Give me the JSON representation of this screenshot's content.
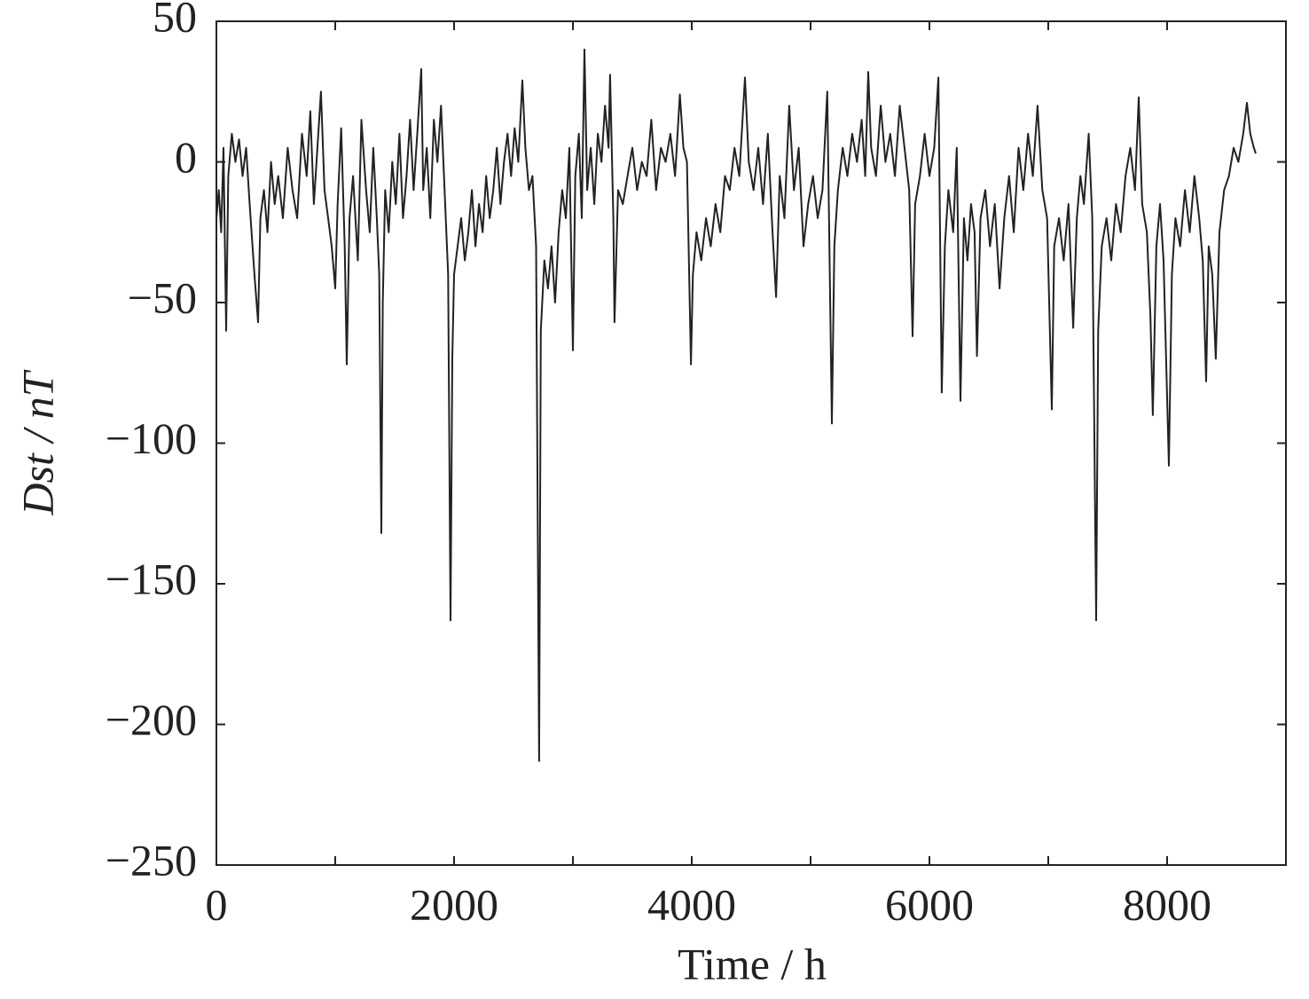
{
  "chart_data": {
    "type": "line",
    "xlabel": "Time / h",
    "ylabel": "Dst / nT",
    "xlim": [
      0,
      9000
    ],
    "xticks": [
      0,
      2000,
      4000,
      6000,
      8000
    ],
    "xminor_ticks": [
      1000,
      3000,
      5000,
      7000,
      9000
    ],
    "ylim": [
      -250,
      50
    ],
    "yticks": [
      {
        "value": 50,
        "label": "50"
      },
      {
        "value": 0,
        "label": "0"
      },
      {
        "value": -50,
        "label": "−50"
      },
      {
        "value": -100,
        "label": "−100"
      },
      {
        "value": -150,
        "label": "−150"
      },
      {
        "value": -200,
        "label": "−200"
      },
      {
        "value": -250,
        "label": "−250"
      }
    ],
    "grid": false,
    "series": [
      {
        "name": "Dst",
        "color": "#222222",
        "x": [
          0,
          20,
          40,
          60,
          82,
          100,
          130,
          160,
          190,
          220,
          250,
          280,
          320,
          351,
          370,
          400,
          430,
          460,
          490,
          520,
          560,
          600,
          640,
          680,
          720,
          760,
          790,
          820,
          850,
          880,
          910,
          940,
          970,
          1000,
          1020,
          1050,
          1080,
          1097,
          1120,
          1150,
          1190,
          1220,
          1260,
          1290,
          1320,
          1350,
          1370,
          1388,
          1400,
          1420,
          1450,
          1480,
          1510,
          1540,
          1570,
          1600,
          1630,
          1660,
          1690,
          1724,
          1740,
          1770,
          1800,
          1830,
          1860,
          1890,
          1920,
          1950,
          1970,
          1985,
          2000,
          2030,
          2060,
          2090,
          2120,
          2150,
          2180,
          2210,
          2240,
          2270,
          2300,
          2330,
          2360,
          2390,
          2420,
          2450,
          2480,
          2510,
          2540,
          2575,
          2600,
          2630,
          2660,
          2690,
          2716,
          2730,
          2760,
          2790,
          2820,
          2850,
          2880,
          2910,
          2940,
          2970,
          3000,
          3020,
          3050,
          3075,
          3097,
          3120,
          3150,
          3180,
          3210,
          3240,
          3270,
          3300,
          3313,
          3340,
          3350,
          3380,
          3420,
          3460,
          3500,
          3540,
          3580,
          3620,
          3660,
          3700,
          3740,
          3780,
          3820,
          3860,
          3900,
          3930,
          3960,
          3993,
          4010,
          4040,
          4080,
          4120,
          4160,
          4200,
          4240,
          4280,
          4320,
          4360,
          4400,
          4448,
          4480,
          4520,
          4560,
          4600,
          4640,
          4680,
          4710,
          4740,
          4780,
          4820,
          4860,
          4900,
          4940,
          4980,
          5020,
          5060,
          5100,
          5140,
          5179,
          5200,
          5230,
          5270,
          5310,
          5350,
          5390,
          5430,
          5460,
          5485,
          5510,
          5550,
          5590,
          5630,
          5670,
          5710,
          5750,
          5790,
          5830,
          5858,
          5880,
          5920,
          5960,
          6000,
          6040,
          6075,
          6104,
          6130,
          6160,
          6200,
          6230,
          6261,
          6290,
          6320,
          6350,
          6380,
          6400,
          6430,
          6470,
          6510,
          6550,
          6590,
          6630,
          6670,
          6710,
          6750,
          6790,
          6830,
          6870,
          6910,
          6950,
          6990,
          7030,
          7050,
          7090,
          7130,
          7170,
          7210,
          7240,
          7270,
          7300,
          7340,
          7370,
          7403,
          7420,
          7450,
          7490,
          7530,
          7570,
          7610,
          7650,
          7690,
          7730,
          7761,
          7790,
          7830,
          7860,
          7880,
          7910,
          7940,
          7970,
          8015,
          8040,
          8070,
          8110,
          8150,
          8190,
          8230,
          8270,
          8300,
          8328,
          8350,
          8380,
          8410,
          8440,
          8480,
          8520,
          8560,
          8600,
          8640,
          8672,
          8700,
          8730,
          8746
        ],
        "values": [
          -20,
          -10,
          -25,
          5,
          -60,
          -5,
          10,
          0,
          8,
          -5,
          5,
          -15,
          -40,
          -57,
          -20,
          -10,
          -25,
          0,
          -15,
          -5,
          -20,
          5,
          -10,
          -20,
          10,
          -5,
          18,
          -15,
          5,
          25,
          -10,
          -20,
          -30,
          -45,
          -15,
          12,
          -30,
          -72,
          -20,
          -5,
          -35,
          15,
          -10,
          -25,
          5,
          -20,
          -40,
          -132,
          -50,
          -10,
          -25,
          0,
          -15,
          10,
          -20,
          -5,
          15,
          -10,
          10,
          33,
          -10,
          5,
          -20,
          15,
          0,
          20,
          -10,
          -40,
          -163,
          -70,
          -40,
          -30,
          -20,
          -35,
          -25,
          -10,
          -30,
          -15,
          -25,
          -5,
          -20,
          -10,
          5,
          -15,
          0,
          10,
          -5,
          12,
          0,
          29,
          5,
          -10,
          -5,
          -30,
          -213,
          -60,
          -35,
          -45,
          -30,
          -50,
          -25,
          -10,
          -20,
          5,
          -67,
          -5,
          10,
          -20,
          40,
          -10,
          5,
          -15,
          10,
          0,
          20,
          5,
          31,
          -20,
          -57,
          -10,
          -15,
          -5,
          5,
          -10,
          0,
          -5,
          15,
          -10,
          5,
          0,
          10,
          -5,
          24,
          5,
          0,
          -72,
          -40,
          -25,
          -35,
          -20,
          -30,
          -15,
          -25,
          -5,
          -10,
          5,
          -5,
          30,
          0,
          -10,
          5,
          -15,
          10,
          -25,
          -48,
          -5,
          -20,
          20,
          -10,
          5,
          -30,
          -15,
          -5,
          -20,
          -10,
          25,
          -93,
          -30,
          -10,
          5,
          -5,
          10,
          0,
          15,
          -5,
          32,
          5,
          -5,
          20,
          0,
          10,
          -5,
          20,
          5,
          -10,
          -62,
          -15,
          -5,
          10,
          -5,
          5,
          30,
          -82,
          -30,
          -10,
          -25,
          5,
          -85,
          -20,
          -35,
          -15,
          -25,
          -69,
          -20,
          -10,
          -30,
          -15,
          -45,
          -20,
          -5,
          -25,
          5,
          -10,
          10,
          -5,
          20,
          -10,
          -20,
          -88,
          -30,
          -20,
          -35,
          -15,
          -59,
          -20,
          -5,
          -15,
          10,
          -20,
          -163,
          -60,
          -30,
          -20,
          -35,
          -15,
          -25,
          -5,
          5,
          -10,
          23,
          -15,
          -25,
          -55,
          -90,
          -30,
          -15,
          -35,
          -108,
          -40,
          -20,
          -30,
          -10,
          -25,
          -5,
          -20,
          -35,
          -78,
          -30,
          -40,
          -70,
          -25,
          -10,
          -5,
          5,
          0,
          10,
          21,
          10,
          5,
          3
        ]
      }
    ]
  }
}
